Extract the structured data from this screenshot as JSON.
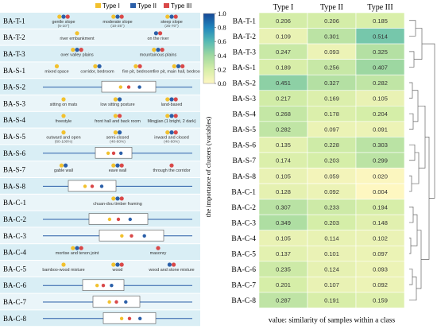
{
  "legend": {
    "title": "the importance of clusters (variables)",
    "ticks": [
      "1.0",
      "0.8",
      "0.6",
      "0.4",
      "0.2",
      "0.0"
    ],
    "type_labels": [
      "Type I",
      "Type II",
      "Type III"
    ],
    "type_colors": [
      "#f2c12e",
      "#2b5fa8",
      "#d94848"
    ]
  },
  "footer_label": "value: similarity of samples within a class",
  "chart_data": {
    "type": "heatmap",
    "columns": [
      "Type I",
      "Type II",
      "Type III"
    ],
    "rows": [
      "BA-T-1",
      "BA-T-2",
      "BA-T-3",
      "BA-S-1",
      "BA-S-2",
      "BA-S-3",
      "BA-S-4",
      "BA-S-5",
      "BA-S-6",
      "BA-S-7",
      "BA-S-8",
      "BA-C-1",
      "BA-C-2",
      "BA-C-3",
      "BA-C-4",
      "BA-C-5",
      "BA-C-6",
      "BA-C-7",
      "BA-C-8"
    ],
    "values": [
      [
        0.206,
        0.206,
        0.185
      ],
      [
        0.109,
        0.301,
        0.514
      ],
      [
        0.247,
        0.093,
        0.325
      ],
      [
        0.189,
        0.256,
        0.407
      ],
      [
        0.451,
        0.327,
        0.282
      ],
      [
        0.217,
        0.169,
        0.105
      ],
      [
        0.268,
        0.178,
        0.204
      ],
      [
        0.282,
        0.097,
        0.091
      ],
      [
        0.135,
        0.228,
        0.303
      ],
      [
        0.174,
        0.203,
        0.299
      ],
      [
        0.105,
        0.059,
        0.02
      ],
      [
        0.128,
        0.092,
        0.004
      ],
      [
        0.307,
        0.233,
        0.194
      ],
      [
        0.349,
        0.203,
        0.148
      ],
      [
        0.105,
        0.114,
        0.102
      ],
      [
        0.137,
        0.101,
        0.097
      ],
      [
        0.235,
        0.124,
        0.093
      ],
      [
        0.201,
        0.107,
        0.092
      ],
      [
        0.287,
        0.191,
        0.159
      ]
    ],
    "colorscale_range": [
      0.0,
      1.0
    ]
  },
  "cell_texts": [
    [
      "0.206",
      "0.206",
      "0.185"
    ],
    [
      "0.109",
      "0.301",
      "0.514"
    ],
    [
      "0.247",
      "0.093",
      "0.325"
    ],
    [
      "0.189",
      "0.256",
      "0.407"
    ],
    [
      "0.451",
      "0.327",
      "0.282"
    ],
    [
      "0.217",
      "0.169",
      "0.105"
    ],
    [
      "0.268",
      "0.178",
      "0.204"
    ],
    [
      "0.282",
      "0.097",
      "0.091"
    ],
    [
      "0.135",
      "0.228",
      "0.303"
    ],
    [
      "0.174",
      "0.203",
      "0.299"
    ],
    [
      "0.105",
      "0.059",
      "0.020"
    ],
    [
      "0.128",
      "0.092",
      "0.004"
    ],
    [
      "0.307",
      "0.233",
      "0.194"
    ],
    [
      "0.349",
      "0.203",
      "0.148"
    ],
    [
      "0.105",
      "0.114",
      "0.102"
    ],
    [
      "0.137",
      "0.101",
      "0.097"
    ],
    [
      "0.235",
      "0.124",
      "0.093"
    ],
    [
      "0.201",
      "0.107",
      "0.092"
    ],
    [
      "0.287",
      "0.191",
      "0.159"
    ]
  ],
  "left_rows": [
    {
      "id": "BA-T-1",
      "kind": "labels",
      "labels": [
        "gentle slope",
        "moderate slope",
        "steep slope"
      ],
      "sublabels": [
        "(5-10°)",
        "(10-25°)",
        "(25-70°)"
      ],
      "dots": [
        [
          [
            "#f2c12e",
            "#2b5fa8",
            "#d94848"
          ]
        ],
        [
          [
            "#f2c12e",
            "#2b5fa8",
            "#d94848"
          ]
        ],
        [
          [
            "#f2c12e",
            "#2b5fa8",
            "#d94848"
          ]
        ]
      ]
    },
    {
      "id": "BA-T-2",
      "kind": "labels",
      "labels": [
        "river embankment",
        "on the river"
      ],
      "sublabels": [
        "",
        ""
      ],
      "dots": [
        [
          [
            "#f2c12e"
          ]
        ],
        [
          [
            "#2b5fa8",
            "#d94848"
          ]
        ]
      ]
    },
    {
      "id": "BA-T-3",
      "kind": "labels",
      "labels": [
        "over valley plains",
        "mountainous plains"
      ],
      "sublabels": [
        "",
        ""
      ],
      "dots": [
        [
          [
            "#f2c12e",
            "#2b5fa8",
            "#d94848"
          ]
        ],
        [
          [
            "#f2c12e",
            "#2b5fa8",
            "#d94848"
          ]
        ]
      ]
    },
    {
      "id": "BA-S-1",
      "kind": "labels",
      "labels": [
        "mixed space",
        "corridor, bedroom",
        "fire pit, bedroom",
        "fire pit, main hall, bedroom"
      ],
      "sublabels": [
        "",
        "",
        "",
        ""
      ],
      "dots": [
        [
          [
            "#f2c12e"
          ]
        ],
        [
          [
            "#f2c12e",
            "#2b5fa8"
          ]
        ],
        [
          [
            "#f2c12e",
            "#d94848"
          ]
        ],
        [
          [
            "#f2c12e",
            "#2b5fa8",
            "#d94848"
          ]
        ]
      ]
    },
    {
      "id": "BA-S-2",
      "kind": "box",
      "labels": [],
      "sublabels": [],
      "dots": []
    },
    {
      "id": "BA-S-3",
      "kind": "labels",
      "labels": [
        "sitting on mats",
        "low sitting posture",
        "land-based"
      ],
      "sublabels": [
        "",
        "",
        ""
      ],
      "dots": [
        [
          [
            "#f2c12e"
          ]
        ],
        [
          [
            "#f2c12e",
            "#2b5fa8"
          ]
        ],
        [
          [
            "#f2c12e",
            "#2b5fa8",
            "#d94848"
          ]
        ]
      ]
    },
    {
      "id": "BA-S-4",
      "kind": "labels",
      "labels": [
        "freestyle",
        "front hall and back room",
        "Mingjian (1 bright, 2 dark)"
      ],
      "sublabels": [
        "",
        "",
        ""
      ],
      "dots": [
        [
          [
            "#f2c12e"
          ]
        ],
        [
          [
            "#f2c12e",
            "#d94848"
          ]
        ],
        [
          [
            "#f2c12e",
            "#2b5fa8",
            "#d94848"
          ]
        ]
      ]
    },
    {
      "id": "BA-S-5",
      "kind": "labels",
      "labels": [
        "outward and open",
        "semi-closed",
        "inward and closed"
      ],
      "sublabels": [
        "(60-100%)",
        "(40-60%)",
        "(40-60%)"
      ],
      "dots": [
        [
          [
            "#f2c12e"
          ]
        ],
        [
          [
            "#f2c12e",
            "#2b5fa8"
          ]
        ],
        [
          [
            "#f2c12e",
            "#2b5fa8",
            "#d94848"
          ]
        ]
      ]
    },
    {
      "id": "BA-S-6",
      "kind": "box",
      "labels": [],
      "sublabels": [],
      "dots": []
    },
    {
      "id": "BA-S-7",
      "kind": "labels",
      "labels": [
        "gable wall",
        "eave wall",
        "through the corridor"
      ],
      "sublabels": [
        "",
        "",
        ""
      ],
      "dots": [
        [
          [
            "#f2c12e",
            "#2b5fa8"
          ]
        ],
        [
          [
            "#f2c12e",
            "#2b5fa8",
            "#d94848"
          ]
        ],
        [
          [
            "#d94848"
          ]
        ]
      ]
    },
    {
      "id": "BA-S-8",
      "kind": "box",
      "labels": [],
      "sublabels": [],
      "dots": []
    },
    {
      "id": "BA-C-1",
      "kind": "labels",
      "labels": [
        "chuan-dou timber framing"
      ],
      "sublabels": [
        ""
      ],
      "dots": [
        [
          [
            "#f2c12e",
            "#2b5fa8",
            "#d94848"
          ]
        ]
      ]
    },
    {
      "id": "BA-C-2",
      "kind": "box",
      "labels": [],
      "sublabels": [],
      "dots": []
    },
    {
      "id": "BA-C-3",
      "kind": "box",
      "labels": [],
      "sublabels": [],
      "dots": []
    },
    {
      "id": "BA-C-4",
      "kind": "labels",
      "labels": [
        "mortise and tenon joint",
        "masonry"
      ],
      "sublabels": [
        "",
        ""
      ],
      "dots": [
        [
          [
            "#f2c12e",
            "#2b5fa8",
            "#d94848"
          ]
        ],
        [
          [
            "#d94848"
          ]
        ]
      ]
    },
    {
      "id": "BA-C-5",
      "kind": "labels",
      "labels": [
        "bamboo-wood mixture",
        "wood",
        "wood and stone mixture"
      ],
      "sublabels": [
        "",
        "",
        ""
      ],
      "dots": [
        [
          [
            "#f2c12e"
          ]
        ],
        [
          [
            "#f2c12e",
            "#2b5fa8",
            "#d94848"
          ]
        ],
        [
          [
            "#2b5fa8",
            "#d94848"
          ]
        ]
      ]
    },
    {
      "id": "BA-C-6",
      "kind": "box",
      "labels": [],
      "sublabels": [],
      "dots": []
    },
    {
      "id": "BA-C-7",
      "kind": "box",
      "labels": [],
      "sublabels": [],
      "dots": []
    },
    {
      "id": "BA-C-8",
      "kind": "box",
      "labels": [],
      "sublabels": [],
      "dots": []
    }
  ]
}
